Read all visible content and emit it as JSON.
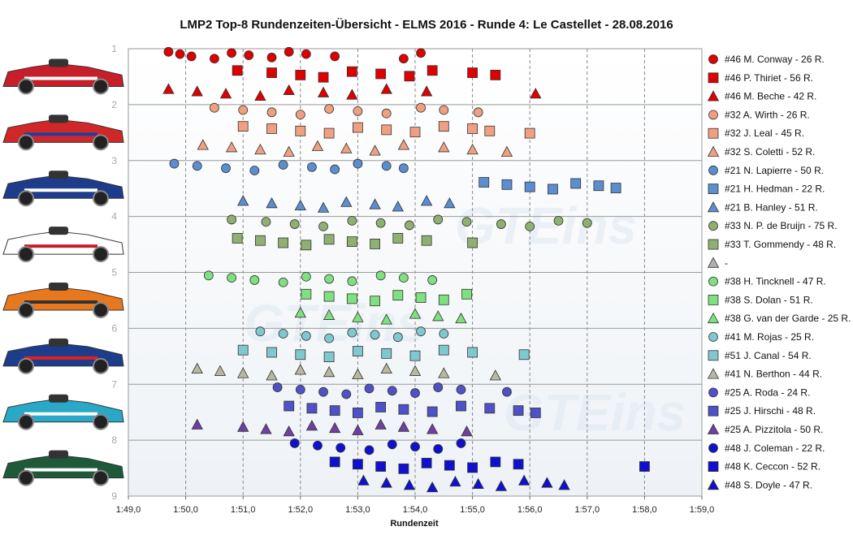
{
  "chart_data": {
    "type": "scatter",
    "title": "LMP2  Top-8 Rundenzeiten-Übersicht  - ELMS 2016  - Runde  4: Le Castellet  - 28.08.2016",
    "xlabel": "Rundenzeit",
    "x_ticks": [
      "1:49,0",
      "1:50,0",
      "1:51,0",
      "1:52,0",
      "1:53,0",
      "1:54,0",
      "1:55,0",
      "1:56,0",
      "1:57,0",
      "1:58,0",
      "1:59,0"
    ],
    "xlim_seconds": [
      109,
      119
    ],
    "y_ticks": [
      "1",
      "2",
      "3",
      "4",
      "5",
      "6",
      "7",
      "8",
      "9"
    ],
    "ylim": [
      1,
      9
    ],
    "grid": true,
    "legend_position": "right",
    "watermark": "GTEins",
    "series": [
      {
        "name": "#46 M. Conway - 26 R.",
        "color": "#e00000",
        "marker": "circle",
        "x": [
          109.7,
          109.9,
          110.1,
          110.5,
          110.8,
          111.1,
          111.5,
          111.8,
          112.1,
          112.6,
          113.8,
          114.1
        ]
      },
      {
        "name": "#46 P. Thiriet - 56 R.",
        "color": "#e00000",
        "marker": "square",
        "x": [
          110.9,
          111.5,
          112.0,
          112.4,
          112.9,
          113.4,
          113.9,
          114.3,
          115.0,
          115.4
        ]
      },
      {
        "name": "#46 M. Beche - 42 R.",
        "color": "#e00000",
        "marker": "triangle",
        "x": [
          109.7,
          110.2,
          110.7,
          111.3,
          111.8,
          112.4,
          112.9,
          113.5,
          114.2,
          116.1
        ]
      },
      {
        "name": "#32 A. Wirth - 26 R.",
        "color": "#f0a080",
        "marker": "circle",
        "x": [
          110.5,
          111.0,
          111.5,
          112.0,
          112.5,
          113.0,
          113.5,
          114.1,
          114.5,
          115.1
        ]
      },
      {
        "name": "#32 J. Leal - 45 R.",
        "color": "#f0a080",
        "marker": "square",
        "x": [
          111.0,
          111.5,
          112.0,
          112.5,
          113.0,
          113.5,
          114.0,
          114.5,
          115.0,
          115.3,
          116.0
        ]
      },
      {
        "name": "#32 S. Coletti - 52 R.",
        "color": "#f0a080",
        "marker": "triangle",
        "x": [
          110.3,
          110.8,
          111.3,
          111.8,
          112.3,
          112.8,
          113.3,
          113.8,
          114.5,
          115.0,
          115.6
        ]
      },
      {
        "name": "#21 N. Lapierre - 50 R.",
        "color": "#5a8ed0",
        "marker": "circle",
        "x": [
          109.8,
          110.2,
          110.7,
          111.2,
          111.7,
          112.2,
          112.6,
          113.0,
          113.5,
          113.8
        ]
      },
      {
        "name": "#21 H. Hedman - 22 R.",
        "color": "#5a8ed0",
        "marker": "square",
        "x": [
          115.2,
          115.6,
          116.0,
          116.4,
          116.8,
          117.2,
          117.5
        ]
      },
      {
        "name": "#21 B. Hanley - 51 R.",
        "color": "#5a8ed0",
        "marker": "triangle",
        "x": [
          111.0,
          111.5,
          112.0,
          112.4,
          112.8,
          113.3,
          113.7,
          114.2,
          114.6
        ]
      },
      {
        "name": "#33 N. P. de Bruijn - 75 R.",
        "color": "#8fb070",
        "marker": "circle",
        "x": [
          110.8,
          111.4,
          111.9,
          112.4,
          112.9,
          113.4,
          113.9,
          114.4,
          114.9,
          115.5,
          116.0,
          116.5,
          117.0
        ]
      },
      {
        "name": "#33 T. Gommendy - 48 R.",
        "color": "#8fb070",
        "marker": "square",
        "x": [
          110.9,
          111.3,
          111.7,
          112.1,
          112.5,
          112.9,
          113.3,
          113.7,
          114.2,
          115.0
        ]
      },
      {
        "name": "-",
        "color": "#b0b0b0",
        "marker": "triangle",
        "x": []
      },
      {
        "name": "#38 H. Tincknell - 47 R.",
        "color": "#7ee07e",
        "marker": "circle",
        "x": [
          110.4,
          110.8,
          111.2,
          111.7,
          112.1,
          112.5,
          112.9,
          113.4,
          113.8,
          114.3
        ]
      },
      {
        "name": "#38 S. Dolan - 51 R.",
        "color": "#7ee07e",
        "marker": "square",
        "x": [
          112.1,
          112.5,
          112.9,
          113.3,
          113.7,
          114.1,
          114.5,
          114.9
        ]
      },
      {
        "name": "#38 G. van der Garde - 25 R.",
        "color": "#7ee07e",
        "marker": "triangle",
        "x": [
          112.0,
          112.5,
          113.0,
          113.5,
          114.0,
          114.4,
          114.8
        ]
      },
      {
        "name": "#41 M. Rojas - 25 R.",
        "color": "#80c8d0",
        "marker": "circle",
        "x": [
          111.3,
          111.7,
          112.1,
          112.5,
          112.9,
          113.3,
          113.7,
          114.1,
          114.5
        ]
      },
      {
        "name": "#51 J. Canal - 54 R.",
        "color": "#80c8d0",
        "marker": "square",
        "x": [
          111.0,
          111.5,
          112.0,
          112.5,
          113.0,
          113.5,
          114.0,
          114.5,
          115.0,
          115.9
        ]
      },
      {
        "name": "#41 N. Berthon - 44 R.",
        "color": "#b8b8a0",
        "marker": "triangle",
        "x": [
          110.2,
          110.6,
          111.0,
          111.5,
          112.0,
          112.5,
          113.0,
          113.5,
          114.0,
          114.5,
          115.4
        ]
      },
      {
        "name": "#25 A. Roda - 24 R.",
        "color": "#5050c8",
        "marker": "circle",
        "x": [
          111.6,
          112.0,
          112.4,
          112.8,
          113.2,
          113.6,
          114.0,
          114.4,
          114.8,
          115.6
        ]
      },
      {
        "name": "#25 J. Hirschi - 48 R.",
        "color": "#5050c8",
        "marker": "square",
        "x": [
          111.8,
          112.2,
          112.6,
          113.0,
          113.4,
          113.8,
          114.3,
          114.8,
          115.3,
          115.8,
          116.1
        ]
      },
      {
        "name": "#25 A. Pizzitola - 50 R.",
        "color": "#7040a0",
        "marker": "triangle",
        "x": [
          110.2,
          111.0,
          111.4,
          111.8,
          112.2,
          112.6,
          113.0,
          113.4,
          113.8,
          114.3,
          114.9
        ]
      },
      {
        "name": "#48 J. Coleman - 22 R.",
        "color": "#1010d0",
        "marker": "circle",
        "x": [
          111.9,
          112.3,
          112.7,
          113.2,
          113.6,
          114.0,
          114.4,
          114.8
        ]
      },
      {
        "name": "#48 K. Ceccon - 52 R.",
        "color": "#1010d0",
        "marker": "square",
        "x": [
          112.6,
          113.0,
          113.4,
          113.8,
          114.2,
          114.6,
          115.0,
          115.4,
          115.8,
          118.0
        ]
      },
      {
        "name": "#48 S. Doyle - 47 R.",
        "color": "#1010d0",
        "marker": "triangle",
        "x": [
          113.1,
          113.5,
          113.9,
          114.3,
          114.7,
          115.1,
          115.5,
          115.9,
          116.3,
          116.6
        ]
      }
    ]
  }
}
